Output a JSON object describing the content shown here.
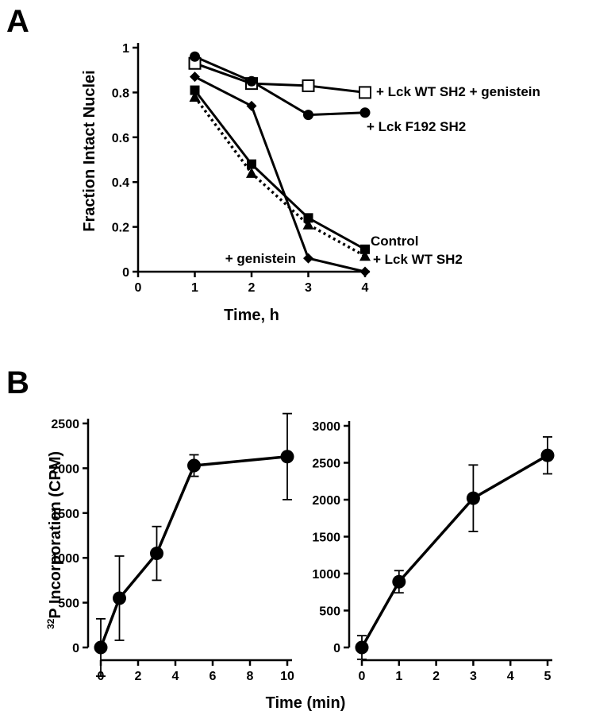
{
  "chart_data": [
    {
      "panel": "A",
      "type": "line",
      "xlabel": "Time, h",
      "ylabel": "Fraction Intact Nuclei",
      "xlim": [
        0,
        4
      ],
      "ylim": [
        0,
        1
      ],
      "xticks": [
        0,
        1,
        2,
        3,
        4
      ],
      "yticks": [
        0,
        0.2,
        0.4,
        0.6,
        0.8,
        1
      ],
      "grid": false,
      "series": [
        {
          "name": "+ Lck WT SH2 + genistein",
          "marker": "open-square",
          "line": "solid",
          "x": [
            1,
            2,
            3,
            4
          ],
          "y": [
            0.93,
            0.84,
            0.83,
            0.8
          ]
        },
        {
          "name": "+ Lck F192 SH2",
          "marker": "circle",
          "line": "solid",
          "x": [
            1,
            2,
            3,
            4
          ],
          "y": [
            0.96,
            0.85,
            0.7,
            0.71
          ]
        },
        {
          "name": "+ genistein",
          "marker": "diamond",
          "line": "solid",
          "x": [
            1,
            2,
            3,
            4
          ],
          "y": [
            0.87,
            0.74,
            0.06,
            0.0
          ]
        },
        {
          "name": "Control",
          "marker": "square",
          "line": "solid",
          "x": [
            1,
            2,
            3,
            4
          ],
          "y": [
            0.81,
            0.48,
            0.24,
            0.1
          ]
        },
        {
          "name": "+ Lck WT SH2",
          "marker": "triangle",
          "line": "dotted",
          "x": [
            1,
            2,
            3,
            4
          ],
          "y": [
            0.78,
            0.44,
            0.21,
            0.07
          ]
        }
      ]
    },
    {
      "panel": "B",
      "type": "line",
      "xlabel": "Time (min)",
      "ylabel": "32P Incorporation (CPM)",
      "xlim": [
        0,
        10
      ],
      "ylim": [
        0,
        2500
      ],
      "xticks": [
        0,
        2,
        4,
        6,
        8,
        10
      ],
      "yticks": [
        0,
        500,
        1000,
        1500,
        2000,
        2500
      ],
      "grid": false,
      "series": [
        {
          "x": [
            0,
            1,
            3,
            5,
            10
          ],
          "y": [
            0,
            550,
            1050,
            2030,
            2130
          ],
          "err": [
            320,
            470,
            300,
            120,
            480
          ]
        }
      ]
    },
    {
      "panel": "B",
      "type": "line",
      "xlabel": "Time (min)",
      "ylabel": "32P Incorporation (CPM)",
      "xlim": [
        0,
        5
      ],
      "ylim": [
        0,
        3000
      ],
      "xticks": [
        0,
        1,
        2,
        3,
        4,
        5
      ],
      "yticks": [
        0,
        500,
        1000,
        1500,
        2000,
        2500,
        3000
      ],
      "grid": false,
      "series": [
        {
          "x": [
            0,
            1,
            3,
            5
          ],
          "y": [
            0,
            890,
            2020,
            2600
          ],
          "err": [
            160,
            150,
            450,
            250
          ]
        }
      ]
    }
  ],
  "panel_labels": {
    "a": "A",
    "b": "B"
  },
  "texts": {
    "a_xlabel": "Time, h",
    "a_ylabel": "Fraction Intact Nuclei",
    "b_xlabel": "Time (min)",
    "b_ylabel_sup": "32",
    "b_ylabel_rest": "P Incorporation (CPM)"
  },
  "colors": {
    "ink": "#000000",
    "background": "#ffffff"
  }
}
